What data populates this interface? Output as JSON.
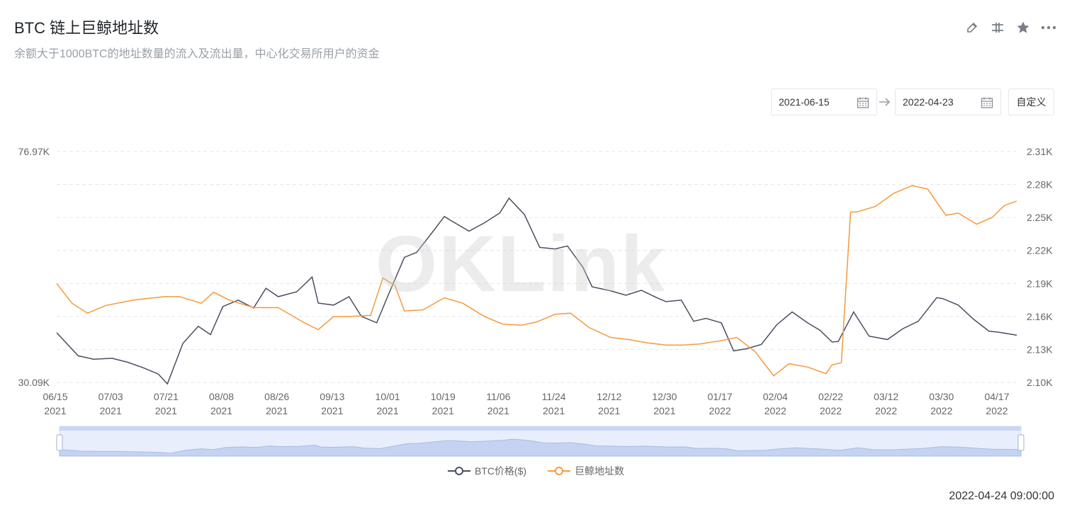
{
  "header": {
    "title": "BTC 链上巨鲸地址数",
    "subtitle": "余额大于1000BTC的地址数量的流入及流出量，中心化交易所用户的资金"
  },
  "toolbar": {
    "icons": [
      "edit-icon",
      "columns-icon",
      "star-icon",
      "more-icon"
    ]
  },
  "date_range": {
    "start": "2021-06-15",
    "end": "2022-04-23",
    "custom_label": "自定义"
  },
  "watermark": "OKLink",
  "timestamp": "2022-04-24 09:00:00",
  "colors": {
    "btc": "#4a4e60",
    "whale": "#f39a3d",
    "grid": "#e3e5e8",
    "axis_text": "#666666"
  },
  "chart_data": {
    "type": "line",
    "title": "BTC 链上巨鲸地址数",
    "x_ticks": [
      [
        "06/15",
        "2021"
      ],
      [
        "07/03",
        "2021"
      ],
      [
        "07/21",
        "2021"
      ],
      [
        "08/08",
        "2021"
      ],
      [
        "08/26",
        "2021"
      ],
      [
        "09/13",
        "2021"
      ],
      [
        "10/01",
        "2021"
      ],
      [
        "10/19",
        "2021"
      ],
      [
        "11/06",
        "2021"
      ],
      [
        "11/24",
        "2021"
      ],
      [
        "12/12",
        "2021"
      ],
      [
        "12/30",
        "2021"
      ],
      [
        "01/17",
        "2022"
      ],
      [
        "02/04",
        "2022"
      ],
      [
        "02/22",
        "2022"
      ],
      [
        "03/12",
        "2022"
      ],
      [
        "03/30",
        "2022"
      ],
      [
        "04/17",
        "2022"
      ]
    ],
    "y_left": {
      "min": 30090,
      "max": 76970,
      "labels": [
        "76.97K",
        "30.09K"
      ]
    },
    "y_right": {
      "min": 2100,
      "max": 2310,
      "ticks": [
        2310,
        2280,
        2250,
        2220,
        2190,
        2160,
        2130,
        2100
      ],
      "labels": [
        "2.31K",
        "2.28K",
        "2.25K",
        "2.22K",
        "2.19K",
        "2.16K",
        "2.13K",
        "2.10K"
      ]
    },
    "grid": true,
    "legend": "bottom-center",
    "series": [
      {
        "name": "BTC价格($)",
        "axis": "left",
        "x": [
          "2021-06-15",
          "2021-06-22",
          "2021-06-27",
          "2021-07-03",
          "2021-07-08",
          "2021-07-13",
          "2021-07-18",
          "2021-07-21",
          "2021-07-26",
          "2021-07-31",
          "2021-08-04",
          "2021-08-08",
          "2021-08-13",
          "2021-08-18",
          "2021-08-22",
          "2021-08-26",
          "2021-09-01",
          "2021-09-06",
          "2021-09-08",
          "2021-09-13",
          "2021-09-18",
          "2021-09-22",
          "2021-09-27",
          "2021-10-01",
          "2021-10-06",
          "2021-10-10",
          "2021-10-15",
          "2021-10-19",
          "2021-10-21",
          "2021-10-27",
          "2021-11-01",
          "2021-11-06",
          "2021-11-09",
          "2021-11-14",
          "2021-11-19",
          "2021-11-24",
          "2021-11-28",
          "2021-12-03",
          "2021-12-06",
          "2021-12-12",
          "2021-12-17",
          "2021-12-22",
          "2021-12-27",
          "2021-12-30",
          "2022-01-04",
          "2022-01-08",
          "2022-01-12",
          "2022-01-17",
          "2022-01-21",
          "2022-01-25",
          "2022-01-30",
          "2022-02-04",
          "2022-02-09",
          "2022-02-14",
          "2022-02-18",
          "2022-02-22",
          "2022-02-24",
          "2022-03-01",
          "2022-03-06",
          "2022-03-12",
          "2022-03-17",
          "2022-03-22",
          "2022-03-28",
          "2022-03-30",
          "2022-04-04",
          "2022-04-09",
          "2022-04-14",
          "2022-04-17",
          "2022-04-23"
        ],
        "values": [
          40200,
          35500,
          34800,
          35000,
          34200,
          33100,
          31800,
          29800,
          38000,
          41500,
          39800,
          45500,
          46800,
          45200,
          49200,
          47500,
          48500,
          51500,
          46200,
          45800,
          47500,
          43500,
          42200,
          48200,
          55500,
          56500,
          60500,
          63800,
          63000,
          60800,
          62500,
          64500,
          67500,
          64200,
          57500,
          57200,
          57800,
          53500,
          49500,
          48700,
          47800,
          48800,
          47300,
          46500,
          46800,
          42500,
          43100,
          42200,
          36500,
          36900,
          37800,
          41800,
          44400,
          42200,
          40700,
          38300,
          38400,
          44400,
          39500,
          38800,
          41000,
          42500,
          47300,
          47100,
          45800,
          42900,
          40500,
          40300,
          39700
        ]
      },
      {
        "name": "巨鲸地址数",
        "axis": "right",
        "x": [
          "2021-06-15",
          "2021-06-20",
          "2021-06-25",
          "2021-07-01",
          "2021-07-10",
          "2021-07-20",
          "2021-07-25",
          "2021-08-01",
          "2021-08-05",
          "2021-08-10",
          "2021-08-18",
          "2021-08-26",
          "2021-09-03",
          "2021-09-08",
          "2021-09-13",
          "2021-09-18",
          "2021-09-25",
          "2021-09-29",
          "2021-10-03",
          "2021-10-06",
          "2021-10-12",
          "2021-10-19",
          "2021-10-25",
          "2021-11-01",
          "2021-11-07",
          "2021-11-13",
          "2021-11-18",
          "2021-11-24",
          "2021-11-29",
          "2021-12-05",
          "2021-12-12",
          "2021-12-18",
          "2021-12-24",
          "2021-12-30",
          "2022-01-04",
          "2022-01-10",
          "2022-01-17",
          "2022-01-22",
          "2022-01-28",
          "2022-02-03",
          "2022-02-08",
          "2022-02-14",
          "2022-02-20",
          "2022-02-22",
          "2022-02-25",
          "2022-02-28",
          "2022-03-02",
          "2022-03-08",
          "2022-03-14",
          "2022-03-20",
          "2022-03-25",
          "2022-03-31",
          "2022-04-04",
          "2022-04-10",
          "2022-04-15",
          "2022-04-19",
          "2022-04-23"
        ],
        "values": [
          2190,
          2172,
          2163,
          2170,
          2175,
          2178,
          2178,
          2172,
          2182,
          2175,
          2168,
          2168,
          2155,
          2148,
          2160,
          2160,
          2161,
          2195,
          2188,
          2165,
          2166,
          2177,
          2172,
          2160,
          2153,
          2152,
          2155,
          2162,
          2163,
          2150,
          2141,
          2139,
          2136,
          2134,
          2134,
          2135,
          2138,
          2141,
          2128,
          2106,
          2117,
          2114,
          2108,
          2116,
          2118,
          2255,
          2255,
          2260,
          2272,
          2279,
          2276,
          2252,
          2254,
          2244,
          2250,
          2261,
          2265
        ]
      }
    ]
  }
}
